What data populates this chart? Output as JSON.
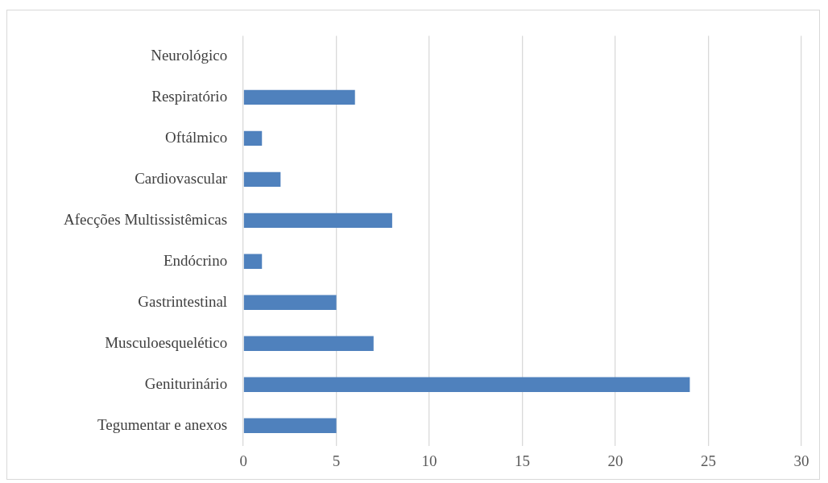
{
  "chart_data": {
    "type": "bar",
    "orientation": "horizontal",
    "categories": [
      "Neurológico",
      "Respiratório",
      "Oftálmico",
      "Cardiovascular",
      "Afecções Multissistêmicas",
      "Endócrino",
      "Gastrintestinal",
      "Musculoesquelético",
      "Geniturinário",
      "Tegumentar e anexos"
    ],
    "values": [
      0,
      6,
      1,
      2,
      8,
      1,
      5,
      7,
      24,
      5
    ],
    "color": "#4f81bd",
    "xlim": [
      0,
      30
    ],
    "xticks": [
      0,
      5,
      10,
      15,
      20,
      25,
      30
    ],
    "grid": "x",
    "legend": false
  }
}
